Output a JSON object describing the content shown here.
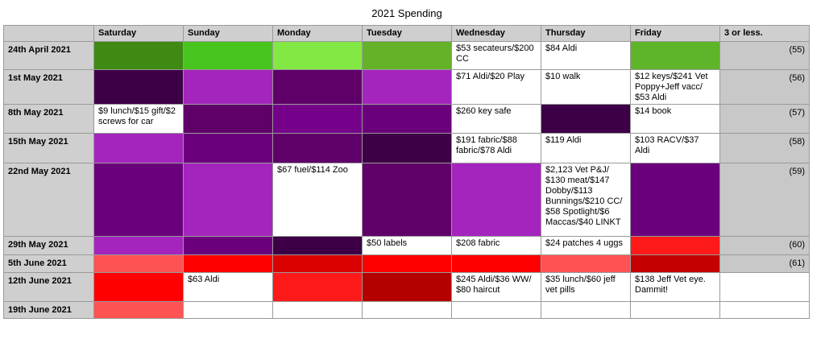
{
  "title": "2021 Spending",
  "headers": [
    "",
    "Saturday",
    "Sunday",
    "Monday",
    "Tuesday",
    "Wednesday",
    "Thursday",
    "Friday",
    "3 or less."
  ],
  "rows": [
    {
      "label": "24th April 2021",
      "cells": [
        {
          "color": "#3f8a12"
        },
        {
          "color": "#47c41d"
        },
        {
          "color": "#83e844"
        },
        {
          "color": "#65b229"
        },
        {
          "text": "$53 secateurs/$200 CC"
        },
        {
          "text": "$84 Aldi"
        },
        {
          "color": "#5fb52a"
        }
      ],
      "extra": "(55)"
    },
    {
      "label": "1st May 2021",
      "cells": [
        {
          "color": "#3d0047"
        },
        {
          "color": "#a425bd"
        },
        {
          "color": "#5f0069"
        },
        {
          "color": "#a425bd"
        },
        {
          "text": "$71 Aldi/$20 Play"
        },
        {
          "text": "$10 walk"
        },
        {
          "text": "$12 keys/$241 Vet Poppy+Jeff vacc/ $53 Aldi"
        }
      ],
      "extra": "(56)"
    },
    {
      "label": "8th May 2021",
      "cells": [
        {
          "text": "$9 lunch/$15 gift/$2 screws for car"
        },
        {
          "color": "#5f0069"
        },
        {
          "color": "#75008a"
        },
        {
          "color": "#6b007c"
        },
        {
          "text": "$260 key safe"
        },
        {
          "color": "#3d0047"
        },
        {
          "text": "$14 book"
        }
      ],
      "extra": "(57)"
    },
    {
      "label": "15th May 2021",
      "cells": [
        {
          "color": "#a425bd"
        },
        {
          "color": "#6b007c"
        },
        {
          "color": "#5f0069"
        },
        {
          "color": "#3d0047"
        },
        {
          "text": "$191 fabric/$88 fabric/$78 Aldi"
        },
        {
          "text": "$119 Aldi"
        },
        {
          "text": "$103 RACV/$37 Aldi"
        }
      ],
      "extra": "(58)"
    },
    {
      "label": "22nd May 2021",
      "cells": [
        {
          "color": "#6b007c"
        },
        {
          "color": "#a425bd"
        },
        {
          "text": "$67 fuel/$114 Zoo"
        },
        {
          "color": "#5f0069"
        },
        {
          "color": "#a425bd"
        },
        {
          "text": "$2,123 Vet P&J/ $130 meat/$147 Dobby/$113 Bunnings/$210 CC/ $58 Spotlight/$6 Maccas/$40 LINKT"
        },
        {
          "color": "#6b007c"
        }
      ],
      "extra": "(59)"
    },
    {
      "label": "29th May 2021",
      "cells": [
        {
          "color": "#a425bd"
        },
        {
          "color": "#6b007c"
        },
        {
          "color": "#3d0047"
        },
        {
          "text": "$50 labels"
        },
        {
          "text": "$208 fabric"
        },
        {
          "text": "$24 patches 4 uggs"
        },
        {
          "color": "#ff1a1a"
        }
      ],
      "extra": "(60)"
    },
    {
      "label": "5th June 2021",
      "cells": [
        {
          "color": "#ff5353"
        },
        {
          "color": "#ff0000"
        },
        {
          "color": "#d90000"
        },
        {
          "color": "#ff0000"
        },
        {
          "color": "#ff0000"
        },
        {
          "color": "#ff5353"
        },
        {
          "color": "#c40000"
        }
      ],
      "extra": "(61)"
    },
    {
      "label": "12th June 2021",
      "cells": [
        {
          "color": "#ff0000"
        },
        {
          "text": "$63 Aldi"
        },
        {
          "color": "#ff1a1a"
        },
        {
          "color": "#b50000"
        },
        {
          "text": "$245 Aldi/$36 WW/ $80 haircut"
        },
        {
          "text": "$35 lunch/$60 jeff vet pills"
        },
        {
          "text": "$138 Jeff Vet eye. Dammit!"
        }
      ],
      "extra": ""
    },
    {
      "label": "19th June 2021",
      "cells": [
        {
          "color": "#ff5353"
        },
        {
          "text": ""
        },
        {
          "text": ""
        },
        {
          "text": ""
        },
        {
          "text": ""
        },
        {
          "text": ""
        },
        {
          "text": ""
        }
      ],
      "extra": ""
    }
  ]
}
